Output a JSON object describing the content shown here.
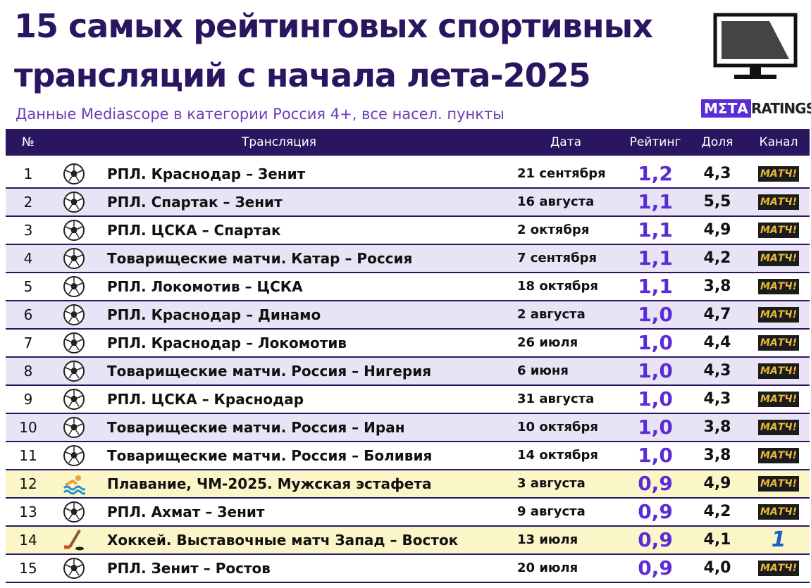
{
  "header": {
    "title_line1": "15 самых рейтинговых спортивных",
    "title_line2": "трансляций с начала лета-2025",
    "subtitle": "Данные Mediascope в категории Россия 4+, все насел. пункты",
    "logo_left": "МΣТА",
    "logo_right": "RATINGS"
  },
  "table": {
    "columns": [
      "№",
      "Трансляция",
      "Дата",
      "Рейтинг",
      "Доля",
      "Канал"
    ],
    "rows": [
      [
        "1",
        "РПЛ. Краснодар – Зенит",
        "21 сентября",
        "1,2",
        "4,3",
        "МАТЧ!"
      ],
      [
        "2",
        "РПЛ. Спартак – Зенит",
        "16 августа",
        "1,1",
        "5,5",
        "МАТЧ!"
      ],
      [
        "3",
        "РПЛ. ЦСКА – Спартак",
        "2 октября",
        "1,1",
        "4,9",
        "МАТЧ!"
      ],
      [
        "4",
        "Товарищеские матчи. Катар – Россия",
        "7 сентября",
        "1,1",
        "4,2",
        "МАТЧ!"
      ],
      [
        "5",
        "РПЛ. Локомотив – ЦСКА",
        "18 октября",
        "1,1",
        "3,8",
        "МАТЧ!"
      ],
      [
        "6",
        "РПЛ. Краснодар – Динамо",
        "2 августа",
        "1,0",
        "4,7",
        "МАТЧ!"
      ],
      [
        "7",
        "РПЛ. Краснодар – Локомотив",
        "26 июля",
        "1,0",
        "4,4",
        "МАТЧ!"
      ],
      [
        "8",
        "Товарищеские матчи. Россия – Нигерия",
        "6 июня",
        "1,0",
        "4,3",
        "МАТЧ!"
      ],
      [
        "9",
        "РПЛ. ЦСКА – Краснодар",
        "31 августа",
        "1,0",
        "4,3",
        "МАТЧ!"
      ],
      [
        "10",
        "Товарищеские матчи. Россия – Иран",
        "10 октября",
        "1,0",
        "3,8",
        "МАТЧ!"
      ],
      [
        "11",
        "Товарищеские матчи. Россия – Боливия",
        "14 октября",
        "1,0",
        "3,8",
        "МАТЧ!"
      ],
      [
        "12",
        "Плавание, ЧМ-2025. Мужская эстафета",
        "3 августа",
        "0,9",
        "4,9",
        "МАТЧ!"
      ],
      [
        "13",
        "РПЛ. Ахмат – Зенит",
        "9 августа",
        "0,9",
        "4,2",
        "МАТЧ!"
      ],
      [
        "14",
        "Хоккей. Выставочные матч Запад – Восток",
        "13 июля",
        "0,9",
        "4,1",
        "1"
      ],
      [
        "15",
        "РПЛ. Зенит – Ростов",
        "20 июля",
        "0,9",
        "4,0",
        "МАТЧ!"
      ]
    ]
  }
}
